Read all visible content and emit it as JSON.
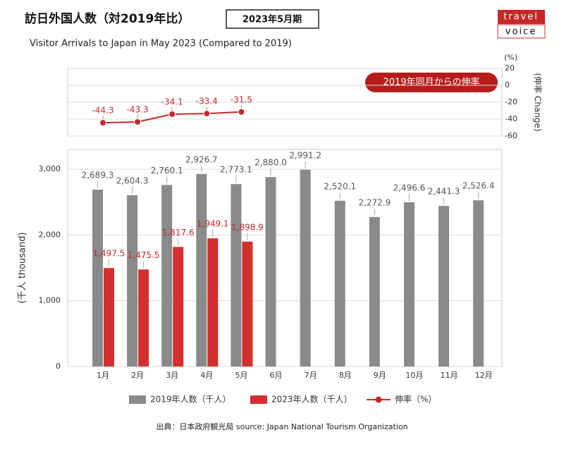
{
  "title": "訪日外国人数（対2019年比）",
  "badge": "2023年5月期",
  "subtitle": "Visitor Arrivals to Japan in May 2023 (Compared to 2019)",
  "logo": [
    "travel",
    "voice"
  ],
  "source": "出典：日本政府観光局  source: Japan National Tourism Organization",
  "chart_data": [
    {
      "type": "line",
      "series": [
        {
          "name": "伸率（%）",
          "color": "#c62828",
          "values": [
            -44.3,
            -43.3,
            -34.1,
            -33.4,
            -31.5,
            null,
            null,
            null,
            null,
            null,
            null,
            null
          ]
        }
      ],
      "ylim": [
        -60,
        20
      ],
      "yticks": [
        -60,
        -40,
        -20,
        0,
        20
      ],
      "y_unit": "(%)",
      "ylabel": "(伸率 Change)",
      "annotation": "2019年同月からの伸率",
      "grid": true
    },
    {
      "type": "bar",
      "categories": [
        "1月",
        "2月",
        "3月",
        "4月",
        "5月",
        "6月",
        "7月",
        "8月",
        "9月",
        "10月",
        "11月",
        "12月"
      ],
      "series": [
        {
          "name": "2019年人数（千人）",
          "color": "#8a8a8a",
          "values": [
            2689.3,
            2604.3,
            2760.1,
            2926.7,
            2773.1,
            2880.0,
            2991.2,
            2520.1,
            2272.9,
            2496.6,
            2441.3,
            2526.4
          ],
          "value_labels": [
            "2,689.3",
            "2,604.3",
            "2,760.1",
            "2,926.7",
            "2,773.1",
            "2,880.0",
            "2,991.2",
            "2,520.1",
            "2,272.9",
            "2,496.6",
            "2,441.3",
            "2,526.4"
          ]
        },
        {
          "name": "2023年人数（千人）",
          "color": "#d32f2f",
          "values": [
            1497.5,
            1475.5,
            1817.6,
            1949.1,
            1898.9,
            null,
            null,
            null,
            null,
            null,
            null,
            null
          ],
          "value_labels": [
            "1,497.5",
            "1,475.5",
            "1,817.6",
            "1,949.1",
            "1,898.9",
            null,
            null,
            null,
            null,
            null,
            null,
            null
          ]
        }
      ],
      "ylim": [
        0,
        3300
      ],
      "yticks": [
        0,
        {
          "value": 1000,
          "label": "1,000"
        },
        {
          "value": 2000,
          "label": "2,000"
        },
        {
          "value": 3000,
          "label": "3,000"
        }
      ],
      "ylabel": "(千人 thousand)",
      "grid": true
    }
  ]
}
